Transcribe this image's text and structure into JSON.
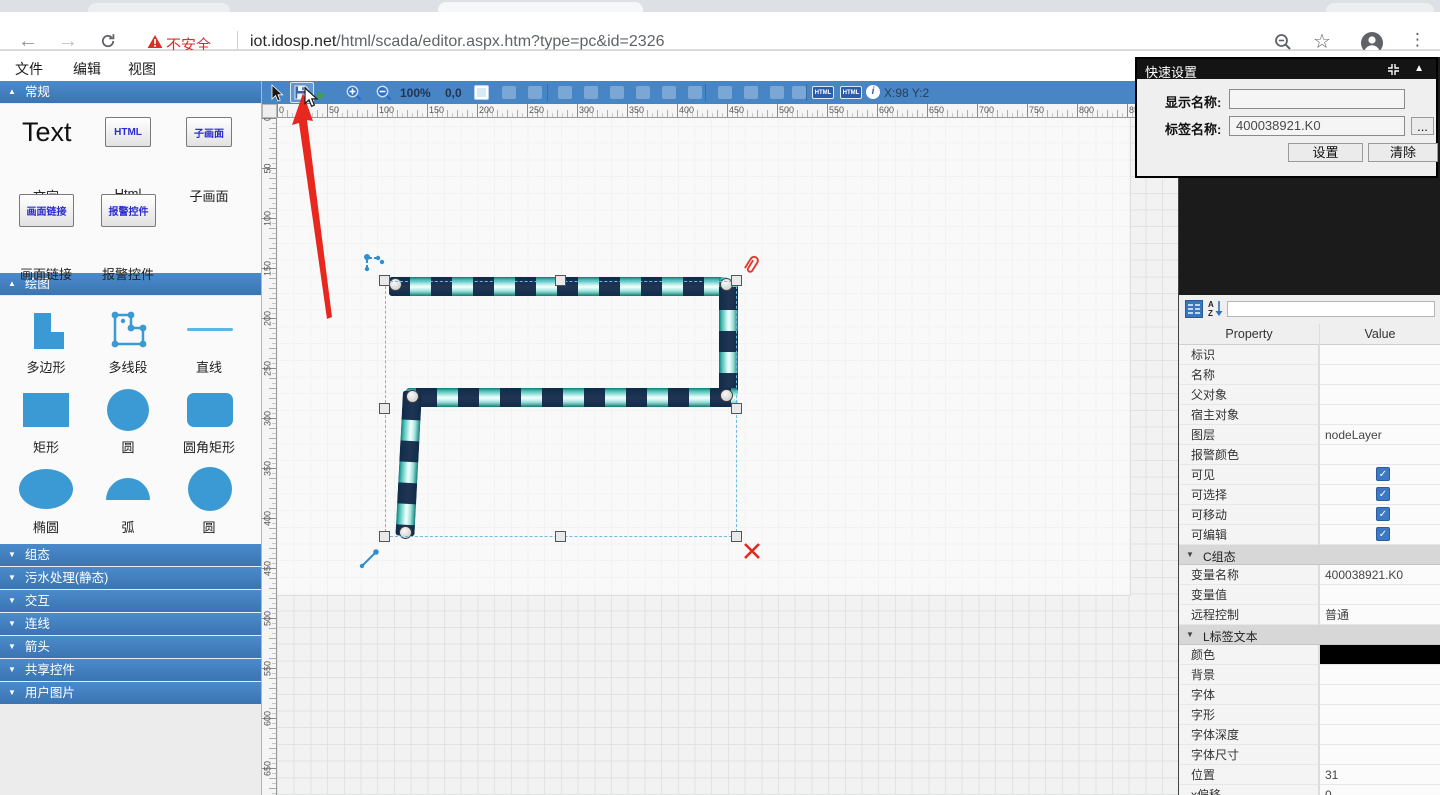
{
  "browser": {
    "security_text": "不安全",
    "url_host": "iot.idosp.net",
    "url_path": "/html/scada/editor.aspx.htm?type=pc&id=2326"
  },
  "menubar": {
    "items": [
      "文件",
      "编辑",
      "视图"
    ]
  },
  "editor_toolbar": {
    "zoom_level": "100%",
    "origin": "0,0",
    "coords": "X:98 Y:2",
    "html_badge_label": "HTML",
    "info_label": "i"
  },
  "rulers": {
    "h_labels": [
      "0",
      "50",
      "100",
      "150",
      "200",
      "250",
      "300",
      "350",
      "400",
      "450",
      "500",
      "550",
      "600",
      "650",
      "700",
      "750",
      "800",
      "850"
    ],
    "v_labels": [
      "0",
      "50",
      "100",
      "150",
      "200",
      "250",
      "300",
      "350",
      "400",
      "450",
      "500",
      "550",
      "600",
      "650"
    ]
  },
  "sidebar": {
    "sections": [
      {
        "label": "常规",
        "expanded": true
      },
      {
        "label": "绘图",
        "expanded": true
      },
      {
        "label": "组态",
        "expanded": false
      },
      {
        "label": "污水处理(静态)",
        "expanded": false
      },
      {
        "label": "交互",
        "expanded": false
      },
      {
        "label": "连线",
        "expanded": false
      },
      {
        "label": "箭头",
        "expanded": false
      },
      {
        "label": "共享控件",
        "expanded": false
      },
      {
        "label": "用户图片",
        "expanded": false
      }
    ],
    "general": {
      "text_sample": "Text",
      "text_caption": "文字",
      "html_button": "HTML",
      "html_caption": "Html",
      "subscreen_button": "子画面",
      "subscreen_caption": "子画面",
      "link_button": "画面链接",
      "link_caption": "画面链接",
      "alarm_button": "报警控件",
      "alarm_caption": "报警控件"
    },
    "draw_items": [
      {
        "label": "多边形",
        "shape": "polygon"
      },
      {
        "label": "多线段",
        "shape": "polyline"
      },
      {
        "label": "直线",
        "shape": "line"
      },
      {
        "label": "矩形",
        "shape": "rect"
      },
      {
        "label": "圆",
        "shape": "circle"
      },
      {
        "label": "圆角矩形",
        "shape": "rounded-rect"
      },
      {
        "label": "椭圆",
        "shape": "ellipse"
      },
      {
        "label": "弧",
        "shape": "arc"
      },
      {
        "label": "圆",
        "shape": "circle"
      }
    ]
  },
  "quick_settings": {
    "title": "快速设置",
    "display_name_label": "显示名称:",
    "display_name_value": "",
    "tag_name_label": "标签名称:",
    "tag_name_value": "400038921.K0",
    "browse_label": "...",
    "set_button": "设置",
    "clear_button": "清除"
  },
  "property_panel": {
    "header_property": "Property",
    "header_value": "Value",
    "sort_letter_a": "A",
    "sort_letter_z": "Z",
    "rows": [
      {
        "type": "text",
        "label": "标识",
        "value": ""
      },
      {
        "type": "text",
        "label": "名称",
        "value": ""
      },
      {
        "type": "text",
        "label": "父对象",
        "value": ""
      },
      {
        "type": "text",
        "label": "宿主对象",
        "value": ""
      },
      {
        "type": "text",
        "label": "图层",
        "value": "nodeLayer"
      },
      {
        "type": "text",
        "label": "报警颜色",
        "value": ""
      },
      {
        "type": "checkbox",
        "label": "可见",
        "checked": true
      },
      {
        "type": "checkbox",
        "label": "可选择",
        "checked": true
      },
      {
        "type": "checkbox",
        "label": "可移动",
        "checked": true
      },
      {
        "type": "checkbox",
        "label": "可编辑",
        "checked": true
      },
      {
        "type": "section",
        "label": "C组态"
      },
      {
        "type": "text",
        "label": "变量名称",
        "value": "400038921.K0"
      },
      {
        "type": "text",
        "label": "变量值",
        "value": ""
      },
      {
        "type": "text",
        "label": "远程控制",
        "value": "普通"
      },
      {
        "type": "section",
        "label": "L标签文本"
      },
      {
        "type": "color",
        "label": "颜色",
        "value": "#000000"
      },
      {
        "type": "text",
        "label": "背景",
        "value": ""
      },
      {
        "type": "text",
        "label": "字体",
        "value": ""
      },
      {
        "type": "text",
        "label": "字形",
        "value": ""
      },
      {
        "type": "text",
        "label": "字体深度",
        "value": ""
      },
      {
        "type": "text",
        "label": "字体尺寸",
        "value": ""
      },
      {
        "type": "text",
        "label": "位置",
        "value": "31"
      },
      {
        "type": "text",
        "label": "x偏移",
        "value": "0"
      }
    ]
  },
  "colors": {
    "accent_blue": "#4785c5",
    "shape_blue": "#3b99d4",
    "alert_red": "#d93025",
    "pipe_teal": "#49c2b8",
    "pipe_navy": "#102446",
    "checkbox_blue": "#3c78c4"
  }
}
